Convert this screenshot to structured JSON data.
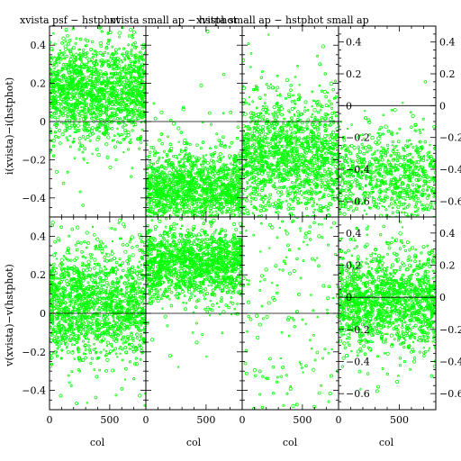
{
  "chart_data": {
    "type": "scatter",
    "marker_color": "#00ff00",
    "axis_color": "#000000",
    "titles": [
      "xvista psf − hstphot",
      "xvista small ap − hstphot",
      "xvista small ap − hstphot small ap"
    ],
    "x_label": "col",
    "y_labels": [
      "i(xvista)−i(hstphot)",
      "v(xvista)−v(hstphot)"
    ],
    "xlim": [
      0,
      800
    ],
    "x_ticks": [
      0,
      500
    ],
    "panels": [
      {
        "row": 0,
        "col": 0,
        "ylim": [
          -0.5,
          0.5
        ],
        "y_ticks": [
          "−0.4",
          "−0.2",
          "0",
          "0.2",
          "0.4"
        ],
        "y_tick_values": [
          -0.4,
          -0.2,
          0,
          0.2,
          0.4
        ],
        "tick_labels_side": "left",
        "center": 0.16,
        "spread": 0.12,
        "n_points": 1500
      },
      {
        "row": 0,
        "col": 1,
        "ylim": [
          -0.5,
          0.5
        ],
        "y_ticks": [],
        "y_tick_values": [],
        "tick_labels_side": "none",
        "center": -0.36,
        "spread": 0.1,
        "n_points": 1400
      },
      {
        "row": 0,
        "col": 2,
        "ylim": [
          -0.5,
          0.5
        ],
        "y_ticks": [],
        "y_tick_values": [],
        "tick_labels_side": "none",
        "center": -0.18,
        "spread": 0.15,
        "n_points": 1400
      },
      {
        "row": 0,
        "col": 3,
        "ylim": [
          -0.7,
          0.5
        ],
        "y_ticks": [
          "−0.6",
          "−0.4",
          "−0.2",
          "0",
          "0.2",
          "0.4"
        ],
        "y_tick_values": [
          -0.6,
          -0.4,
          -0.2,
          0,
          0.2,
          0.4
        ],
        "tick_labels_side": "both",
        "center": -0.45,
        "spread": 0.14,
        "n_points": 800
      },
      {
        "row": 1,
        "col": 0,
        "ylim": [
          -0.5,
          0.5
        ],
        "y_ticks": [
          "−0.4",
          "−0.2",
          "0",
          "0.2",
          "0.4"
        ],
        "y_tick_values": [
          -0.4,
          -0.2,
          0,
          0.2,
          0.4
        ],
        "tick_labels_side": "left",
        "center": 0.04,
        "spread": 0.14,
        "n_points": 1500
      },
      {
        "row": 1,
        "col": 1,
        "ylim": [
          -0.5,
          0.5
        ],
        "y_ticks": [],
        "y_tick_values": [],
        "tick_labels_side": "none",
        "center": 0.26,
        "spread": 0.09,
        "n_points": 1400
      },
      {
        "row": 1,
        "col": 2,
        "ylim": [
          -0.5,
          0.5
        ],
        "y_ticks": [],
        "y_tick_values": [],
        "tick_labels_side": "none",
        "center": 0.0,
        "spread": 0.5,
        "n_points": 150
      },
      {
        "row": 1,
        "col": 3,
        "ylim": [
          -0.7,
          0.5
        ],
        "y_ticks": [
          "−0.6",
          "−0.4",
          "−0.2",
          "0",
          "0.2",
          "0.4"
        ],
        "y_tick_values": [
          -0.6,
          -0.4,
          -0.2,
          0,
          0.2,
          0.4
        ],
        "tick_labels_side": "both",
        "center": -0.02,
        "spread": 0.14,
        "n_points": 1400
      }
    ]
  }
}
